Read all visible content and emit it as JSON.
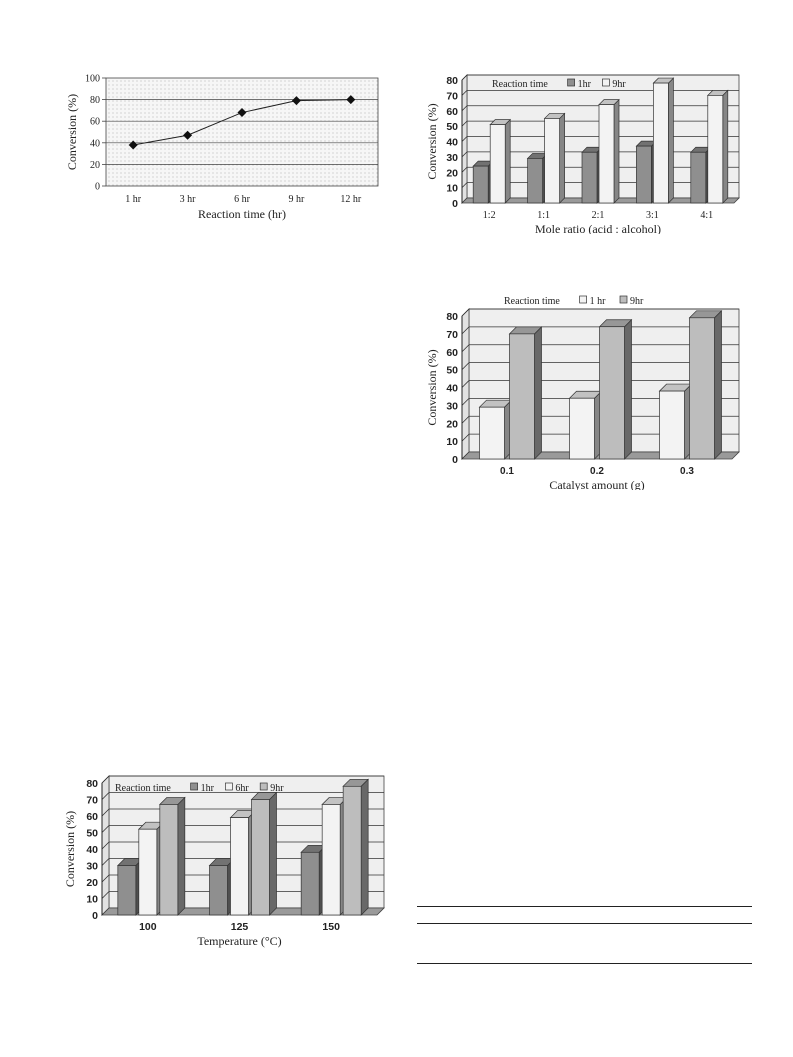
{
  "chart_data": [
    {
      "id": "line-reaction-time",
      "type": "line",
      "categories": [
        "1 hr",
        "3 hr",
        "6 hr",
        "9 hr",
        "12 hr"
      ],
      "series": [
        {
          "values": [
            38,
            47,
            68,
            79,
            80
          ]
        }
      ],
      "xlabel": "Reaction time (hr)",
      "ylabel": "Conversion (%)",
      "ylim": [
        0,
        100
      ],
      "yticks": [
        0,
        20,
        40,
        60,
        80,
        100
      ],
      "grid": true,
      "legend": null
    },
    {
      "id": "bar-mole-ratio",
      "type": "bar",
      "categories": [
        "1:2",
        "1:1",
        "2:1",
        "3:1",
        "4:1"
      ],
      "legend_title": "Reaction time",
      "series": [
        {
          "name": "1hr",
          "values": [
            24,
            29,
            33,
            37,
            33
          ]
        },
        {
          "name": "9hr",
          "values": [
            51,
            55,
            64,
            78,
            70
          ]
        }
      ],
      "xlabel": "Mole ratio (acid : alcohol)",
      "ylabel": "Conversion (%)",
      "ylim": [
        0,
        80
      ],
      "yticks": [
        0,
        10,
        20,
        30,
        40,
        50,
        60,
        70,
        80
      ],
      "grid": true,
      "legend": "top-left"
    },
    {
      "id": "bar-catalyst-amount",
      "type": "bar",
      "categories": [
        "0.1",
        "0.2",
        "0.3"
      ],
      "legend_title": "Reaction time",
      "series": [
        {
          "name": "1 hr",
          "values": [
            29,
            34,
            38
          ]
        },
        {
          "name": "9hr",
          "values": [
            70,
            74,
            79
          ]
        }
      ],
      "xlabel": "Catalyst amount (g)",
      "ylabel": "Conversion (%)",
      "ylim": [
        0,
        80
      ],
      "yticks": [
        0,
        10,
        20,
        30,
        40,
        50,
        60,
        70,
        80
      ],
      "grid": true,
      "legend": "top"
    },
    {
      "id": "bar-temperature",
      "type": "bar",
      "categories": [
        "100",
        "125",
        "150"
      ],
      "legend_title": "Reaction time",
      "series": [
        {
          "name": "1hr",
          "values": [
            30,
            30,
            38
          ]
        },
        {
          "name": "6hr",
          "values": [
            52,
            59,
            67
          ]
        },
        {
          "name": "9hr",
          "values": [
            67,
            70,
            78
          ]
        }
      ],
      "xlabel": "Temperature (°C)",
      "ylabel": "Conversion (%)",
      "ylim": [
        0,
        80
      ],
      "yticks": [
        0,
        10,
        20,
        30,
        40,
        50,
        60,
        70,
        80
      ],
      "grid": true,
      "legend": "top-left"
    }
  ],
  "colors": {
    "dark_bar": "#8f8f8f",
    "medium_bar": "#bdbdbd",
    "light_bar": "#f3f3f3",
    "plot_background": "#efefef",
    "grid": "#333333"
  }
}
